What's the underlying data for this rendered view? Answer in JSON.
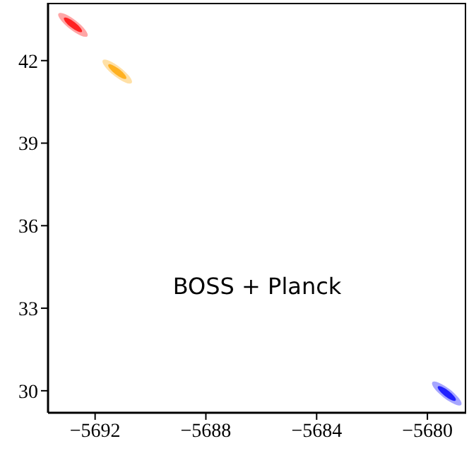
{
  "chart_data": {
    "type": "scatter",
    "annotations": [
      "BOSS + Planck"
    ],
    "series": [
      {
        "color": "#ff0000",
        "x": [
          -5692.8
        ],
        "values": [
          43.3
        ]
      },
      {
        "color": "#ffa500",
        "x": [
          -5691.2
        ],
        "values": [
          41.6
        ]
      },
      {
        "color": "#0000ff",
        "x": [
          -5679.3
        ],
        "values": [
          29.9
        ]
      }
    ],
    "xlim": [
      -5693.7,
      -5678.6
    ],
    "xticks": [
      {
        "value": -5692,
        "label": "−5692"
      },
      {
        "value": -5688,
        "label": "−5688"
      },
      {
        "value": -5684,
        "label": "−5684"
      },
      {
        "value": -5680,
        "label": "−5680"
      }
    ],
    "ylim": [
      29.2,
      44.1
    ],
    "yticks": [
      30,
      33,
      36,
      39,
      42
    ],
    "grid": false,
    "legend": false
  }
}
